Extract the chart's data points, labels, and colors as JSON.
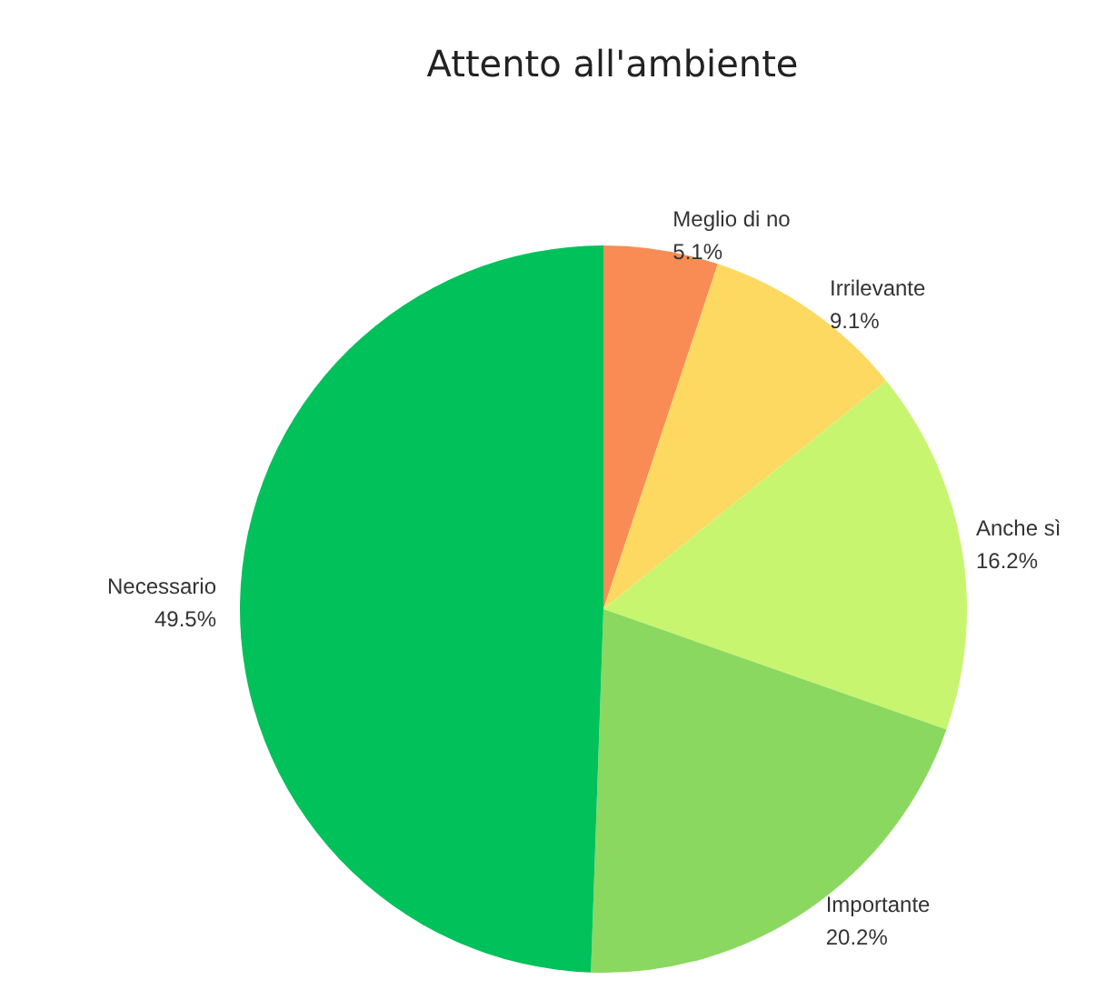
{
  "chart_data": {
    "type": "pie",
    "title": "Attento all'ambiente",
    "categories": [
      "Meglio di no",
      "Irrilevante",
      "Anche sì",
      "Importante",
      "Necessario"
    ],
    "values": [
      5.1,
      9.1,
      16.2,
      20.2,
      49.5
    ],
    "value_labels": [
      "5.1%",
      "9.1%",
      "16.2%",
      "20.2%",
      "49.5%"
    ],
    "colors": [
      "#f98c55",
      "#fdd961",
      "#c8f56f",
      "#8ad85f",
      "#00c15a"
    ],
    "legend": false
  }
}
